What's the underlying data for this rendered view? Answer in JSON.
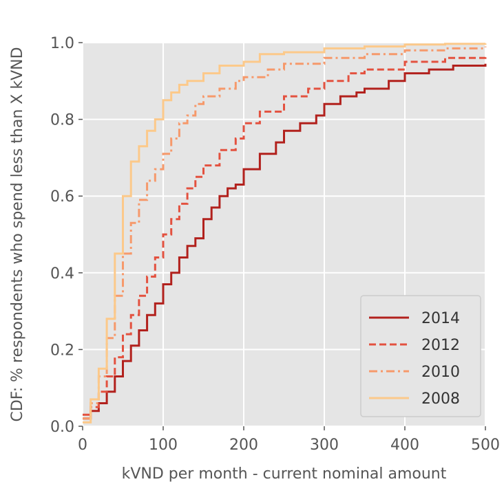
{
  "chart_data": {
    "type": "line",
    "title": "",
    "xlabel": "kVND per month - current nominal amount",
    "ylabel": "CDF: % respondents who spend less than X kVND",
    "xlim": [
      0,
      500
    ],
    "ylim": [
      0,
      1.0
    ],
    "xticks": [
      "0",
      "100",
      "200",
      "300",
      "400",
      "500"
    ],
    "yticks": [
      "0.0",
      "0.2",
      "0.4",
      "0.6",
      "0.8",
      "1.0"
    ],
    "grid": true,
    "legend_position": "lower-right",
    "series": [
      {
        "name": "2014",
        "color": "#b2211d",
        "dash": "solid",
        "points": [
          [
            0,
            0.02
          ],
          [
            10,
            0.04
          ],
          [
            20,
            0.06
          ],
          [
            30,
            0.09
          ],
          [
            40,
            0.13
          ],
          [
            50,
            0.17
          ],
          [
            60,
            0.21
          ],
          [
            70,
            0.25
          ],
          [
            80,
            0.29
          ],
          [
            90,
            0.32
          ],
          [
            100,
            0.37
          ],
          [
            110,
            0.4
          ],
          [
            120,
            0.44
          ],
          [
            130,
            0.47
          ],
          [
            140,
            0.49
          ],
          [
            150,
            0.54
          ],
          [
            160,
            0.57
          ],
          [
            170,
            0.6
          ],
          [
            180,
            0.62
          ],
          [
            190,
            0.63
          ],
          [
            200,
            0.67
          ],
          [
            220,
            0.71
          ],
          [
            240,
            0.74
          ],
          [
            250,
            0.77
          ],
          [
            270,
            0.79
          ],
          [
            290,
            0.81
          ],
          [
            300,
            0.84
          ],
          [
            320,
            0.86
          ],
          [
            340,
            0.87
          ],
          [
            350,
            0.88
          ],
          [
            380,
            0.9
          ],
          [
            400,
            0.92
          ],
          [
            430,
            0.93
          ],
          [
            460,
            0.94
          ],
          [
            500,
            0.945
          ]
        ]
      },
      {
        "name": "2012",
        "color": "#e3513f",
        "dash": "dashed",
        "points": [
          [
            0,
            0.03
          ],
          [
            10,
            0.05
          ],
          [
            20,
            0.09
          ],
          [
            30,
            0.13
          ],
          [
            40,
            0.18
          ],
          [
            50,
            0.24
          ],
          [
            60,
            0.29
          ],
          [
            70,
            0.34
          ],
          [
            80,
            0.39
          ],
          [
            90,
            0.44
          ],
          [
            100,
            0.5
          ],
          [
            110,
            0.54
          ],
          [
            120,
            0.58
          ],
          [
            130,
            0.62
          ],
          [
            140,
            0.65
          ],
          [
            150,
            0.68
          ],
          [
            170,
            0.72
          ],
          [
            190,
            0.75
          ],
          [
            200,
            0.79
          ],
          [
            220,
            0.82
          ],
          [
            250,
            0.86
          ],
          [
            280,
            0.88
          ],
          [
            300,
            0.9
          ],
          [
            330,
            0.92
          ],
          [
            350,
            0.93
          ],
          [
            400,
            0.95
          ],
          [
            450,
            0.96
          ],
          [
            500,
            0.97
          ]
        ]
      },
      {
        "name": "2010",
        "color": "#f6996b",
        "dash": "dashdot",
        "points": [
          [
            0,
            0.02
          ],
          [
            10,
            0.06
          ],
          [
            20,
            0.13
          ],
          [
            30,
            0.23
          ],
          [
            40,
            0.34
          ],
          [
            50,
            0.45
          ],
          [
            60,
            0.53
          ],
          [
            70,
            0.59
          ],
          [
            80,
            0.64
          ],
          [
            90,
            0.67
          ],
          [
            100,
            0.71
          ],
          [
            110,
            0.75
          ],
          [
            120,
            0.79
          ],
          [
            130,
            0.81
          ],
          [
            140,
            0.84
          ],
          [
            150,
            0.86
          ],
          [
            170,
            0.88
          ],
          [
            190,
            0.9
          ],
          [
            200,
            0.91
          ],
          [
            230,
            0.93
          ],
          [
            250,
            0.945
          ],
          [
            300,
            0.96
          ],
          [
            350,
            0.97
          ],
          [
            400,
            0.98
          ],
          [
            450,
            0.985
          ],
          [
            500,
            0.99
          ]
        ]
      },
      {
        "name": "2008",
        "color": "#fcc98a",
        "dash": "solid",
        "points": [
          [
            0,
            0.01
          ],
          [
            10,
            0.07
          ],
          [
            20,
            0.15
          ],
          [
            30,
            0.28
          ],
          [
            40,
            0.45
          ],
          [
            50,
            0.6
          ],
          [
            60,
            0.69
          ],
          [
            70,
            0.73
          ],
          [
            80,
            0.77
          ],
          [
            90,
            0.8
          ],
          [
            100,
            0.85
          ],
          [
            110,
            0.87
          ],
          [
            120,
            0.89
          ],
          [
            130,
            0.9
          ],
          [
            150,
            0.92
          ],
          [
            170,
            0.94
          ],
          [
            200,
            0.95
          ],
          [
            220,
            0.97
          ],
          [
            250,
            0.975
          ],
          [
            300,
            0.985
          ],
          [
            350,
            0.99
          ],
          [
            400,
            0.995
          ],
          [
            450,
            0.997
          ],
          [
            500,
            0.998
          ]
        ]
      }
    ]
  }
}
